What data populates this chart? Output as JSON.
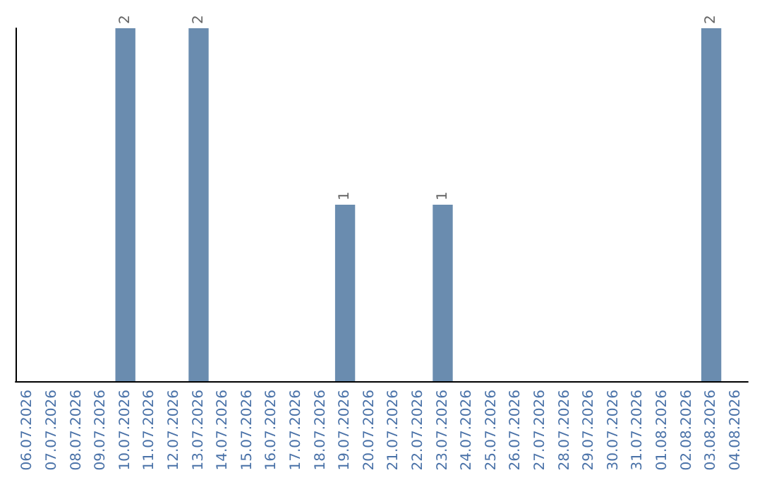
{
  "chart_data": {
    "type": "bar",
    "categories": [
      "06.07.2026",
      "07.07.2026",
      "08.07.2026",
      "09.07.2026",
      "10.07.2026",
      "11.07.2026",
      "12.07.2026",
      "13.07.2026",
      "14.07.2026",
      "15.07.2026",
      "16.07.2026",
      "17.07.2026",
      "18.07.2026",
      "19.07.2026",
      "20.07.2026",
      "21.07.2026",
      "22.07.2026",
      "23.07.2026",
      "24.07.2026",
      "25.07.2026",
      "26.07.2026",
      "27.07.2026",
      "28.07.2026",
      "29.07.2026",
      "30.07.2026",
      "31.07.2026",
      "01.08.2026",
      "02.08.2026",
      "03.08.2026",
      "04.08.2026"
    ],
    "values": [
      0,
      0,
      0,
      0,
      2,
      0,
      0,
      2,
      0,
      0,
      0,
      0,
      0,
      1,
      0,
      0,
      0,
      1,
      0,
      0,
      0,
      0,
      0,
      0,
      0,
      0,
      0,
      0,
      2,
      0
    ],
    "value_labels": [
      null,
      null,
      null,
      null,
      "2",
      null,
      null,
      "2",
      null,
      null,
      null,
      null,
      null,
      "1",
      null,
      null,
      null,
      "1",
      null,
      null,
      null,
      null,
      null,
      null,
      null,
      null,
      null,
      null,
      "2",
      null
    ],
    "color": "#6a8caf",
    "tick_labels": "x"
  }
}
